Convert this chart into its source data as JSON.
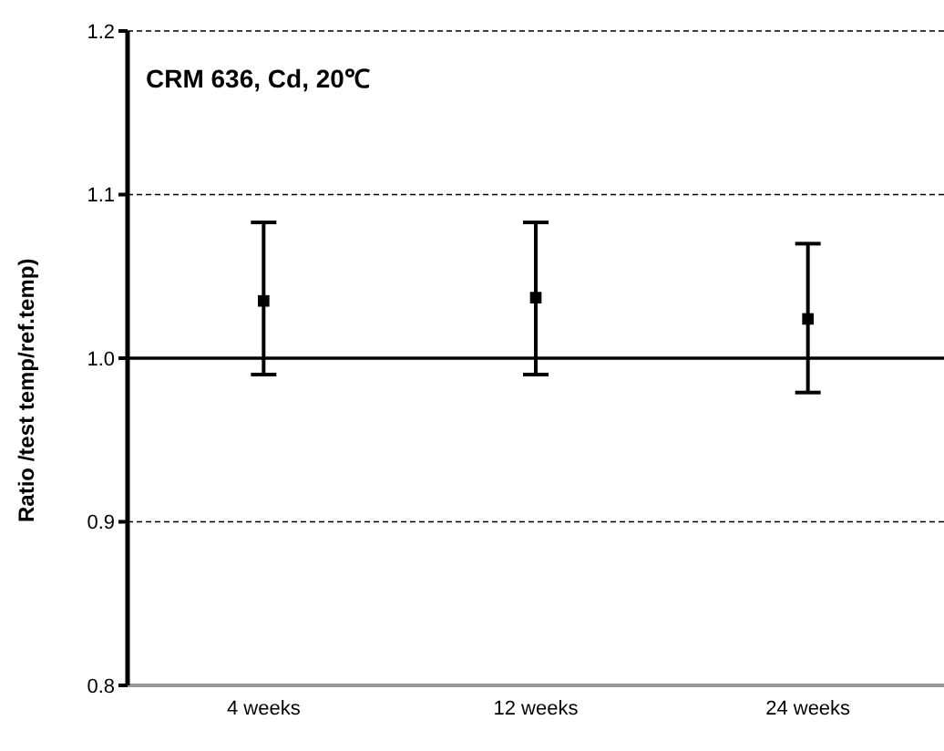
{
  "chart_data": {
    "type": "scatter",
    "title": "CRM 636, Cd, 20℃",
    "ylabel": "Ratio /test temp/ref.temp)",
    "categories": [
      "4 weeks",
      "12 weeks",
      "24 weeks"
    ],
    "series": [
      {
        "color": "#000000",
        "values": [
          1.035,
          1.037,
          1.024
        ],
        "errors": [
          [
            0.99,
            1.083
          ],
          [
            0.99,
            1.083
          ],
          [
            0.979,
            1.07
          ]
        ]
      }
    ],
    "ylim": [
      0.8,
      1.2
    ],
    "yticks": [
      0.8,
      0.9,
      {
        "value": 1.0,
        "label": "1.0"
      },
      1.1,
      1.2
    ],
    "grid": "y",
    "marker": "square",
    "ref_lines": [
      {
        "axis": "y",
        "value": 1.0,
        "color": "#000000",
        "line_style": "solid"
      }
    ]
  }
}
